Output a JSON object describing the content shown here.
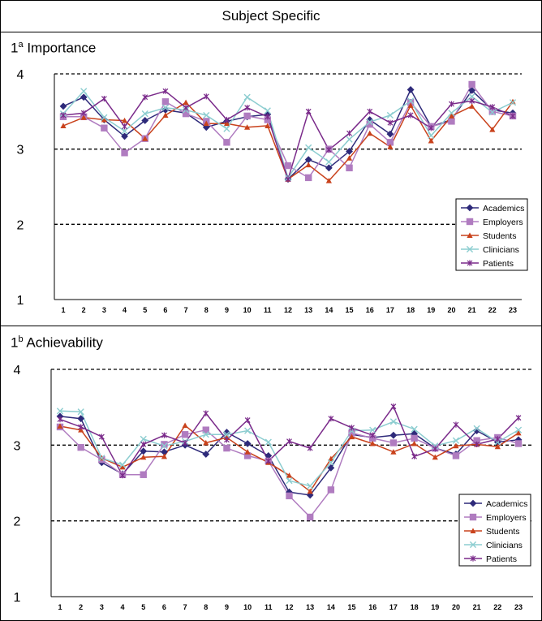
{
  "title": "Subject Specific",
  "colors": {
    "Academics": "#2e2a7a",
    "Employers": "#b07cc0",
    "Students": "#c9421c",
    "Clinicians": "#8ccdd0",
    "Patients": "#7a2a8a"
  },
  "chart_data": [
    {
      "type": "line",
      "title_prefix": "1",
      "title_sup": "a",
      "title": "Importance",
      "x": [
        1,
        2,
        3,
        4,
        5,
        6,
        7,
        8,
        9,
        10,
        11,
        12,
        13,
        14,
        15,
        16,
        17,
        18,
        19,
        20,
        21,
        22,
        23
      ],
      "ylim": [
        1,
        4
      ],
      "yticks": [
        1,
        2,
        3,
        4
      ],
      "grid": "dashed at 2, 3, 4",
      "legend": "right",
      "series": [
        {
          "name": "Academics",
          "marker": "diamond",
          "values": [
            3.57,
            3.69,
            3.39,
            3.17,
            3.38,
            3.52,
            3.48,
            3.29,
            3.37,
            3.43,
            3.46,
            2.6,
            2.86,
            2.75,
            2.97,
            3.39,
            3.2,
            3.79,
            3.3,
            3.39,
            3.78,
            3.52,
            3.48
          ]
        },
        {
          "name": "Employers",
          "marker": "square",
          "values": [
            3.43,
            3.43,
            3.28,
            2.95,
            3.14,
            3.63,
            3.47,
            3.37,
            3.09,
            3.44,
            3.39,
            2.78,
            2.62,
            3.0,
            2.75,
            3.33,
            3.09,
            3.62,
            3.3,
            3.37,
            3.86,
            3.5,
            3.44
          ]
        },
        {
          "name": "Students",
          "marker": "triangle",
          "values": [
            3.31,
            3.42,
            3.39,
            3.38,
            3.14,
            3.45,
            3.62,
            3.34,
            3.34,
            3.29,
            3.31,
            2.6,
            2.79,
            2.58,
            2.88,
            3.21,
            3.03,
            3.58,
            3.11,
            3.44,
            3.57,
            3.26,
            3.63
          ]
        },
        {
          "name": "Clinicians",
          "marker": "x",
          "values": [
            3.47,
            3.77,
            3.42,
            3.24,
            3.47,
            3.55,
            3.52,
            3.45,
            3.27,
            3.69,
            3.51,
            2.62,
            3.02,
            2.83,
            3.13,
            3.36,
            3.45,
            3.64,
            3.18,
            3.48,
            3.7,
            3.49,
            3.62
          ]
        },
        {
          "name": "Patients",
          "marker": "star",
          "values": [
            3.45,
            3.48,
            3.67,
            3.3,
            3.69,
            3.77,
            3.55,
            3.7,
            3.39,
            3.55,
            3.43,
            2.6,
            3.5,
            2.99,
            3.21,
            3.5,
            3.35,
            3.45,
            3.28,
            3.6,
            3.64,
            3.56,
            3.44
          ]
        }
      ]
    },
    {
      "type": "line",
      "title_prefix": "1",
      "title_sup": "b",
      "title": "Achievability",
      "x": [
        1,
        2,
        3,
        4,
        5,
        6,
        7,
        8,
        9,
        10,
        11,
        12,
        13,
        14,
        15,
        16,
        17,
        18,
        19,
        20,
        21,
        22,
        23
      ],
      "ylim": [
        1,
        4
      ],
      "yticks": [
        1,
        2,
        3,
        4
      ],
      "grid": "dashed at 2, 3, 4",
      "legend": "right",
      "series": [
        {
          "name": "Academics",
          "marker": "diamond",
          "values": [
            3.38,
            3.35,
            2.77,
            2.62,
            2.92,
            2.91,
            3.0,
            2.88,
            3.17,
            3.02,
            2.86,
            2.38,
            2.34,
            2.7,
            3.14,
            3.1,
            3.13,
            3.15,
            2.96,
            2.88,
            3.19,
            3.04,
            3.07
          ]
        },
        {
          "name": "Employers",
          "marker": "square",
          "values": [
            3.24,
            2.97,
            2.81,
            2.61,
            2.61,
            3.01,
            3.14,
            3.2,
            2.96,
            2.86,
            2.79,
            2.33,
            2.05,
            2.41,
            3.16,
            3.09,
            3.03,
            3.09,
            2.96,
            2.86,
            3.06,
            3.1,
            3.02
          ]
        },
        {
          "name": "Students",
          "marker": "triangle",
          "values": [
            3.25,
            3.2,
            2.83,
            2.71,
            2.84,
            2.85,
            3.26,
            3.03,
            3.1,
            2.91,
            2.77,
            2.6,
            2.39,
            2.82,
            3.11,
            3.02,
            2.91,
            3.02,
            2.84,
            2.99,
            3.01,
            2.98,
            3.16
          ]
        },
        {
          "name": "Clinicians",
          "marker": "x",
          "values": [
            3.45,
            3.44,
            2.83,
            2.74,
            3.08,
            2.99,
            3.05,
            3.14,
            3.14,
            3.19,
            3.04,
            2.53,
            2.46,
            2.77,
            3.19,
            3.2,
            3.31,
            3.21,
            2.99,
            3.06,
            3.22,
            3.04,
            3.2
          ]
        },
        {
          "name": "Patients",
          "marker": "star",
          "values": [
            3.34,
            3.24,
            3.11,
            2.6,
            3.01,
            3.13,
            3.03,
            3.42,
            3.07,
            3.33,
            2.79,
            3.05,
            2.96,
            3.35,
            3.23,
            3.13,
            3.51,
            2.85,
            2.95,
            3.27,
            3.01,
            3.08,
            3.36
          ]
        }
      ]
    }
  ]
}
